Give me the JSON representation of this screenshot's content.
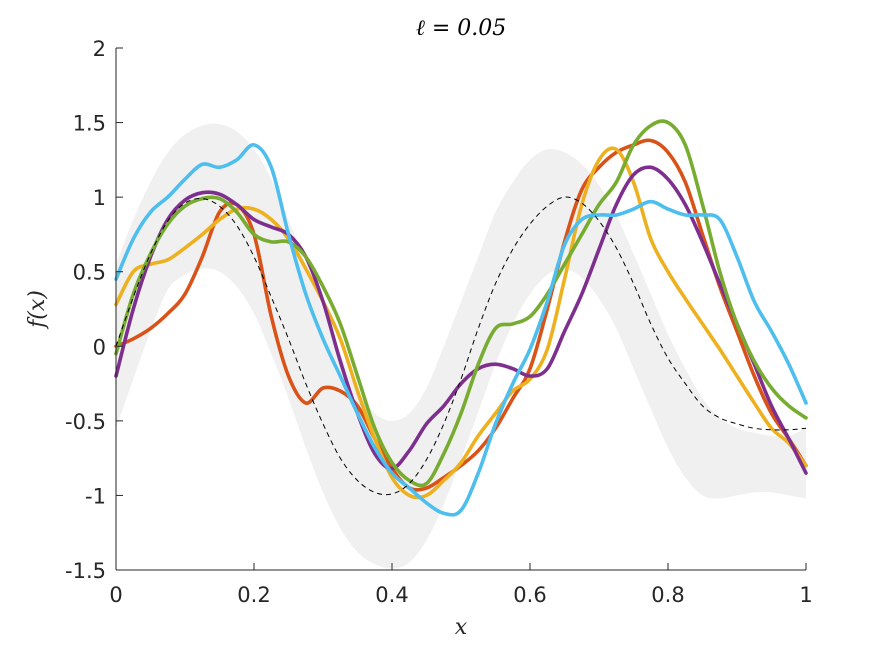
{
  "chart_data": {
    "type": "line",
    "title": "ℓ = 0.05",
    "xlabel": "x",
    "ylabel": "f(x)",
    "xlim": [
      0,
      1
    ],
    "ylim": [
      -1.5,
      2
    ],
    "xticks": [
      "0",
      "0.2",
      "0.4",
      "0.6",
      "0.8",
      "1"
    ],
    "yticks": [
      "-1.5",
      "-1",
      "-0.5",
      "0",
      "0.5",
      "1",
      "1.5",
      "2"
    ],
    "grid": false,
    "legend": "none",
    "x": [
      0,
      0.025,
      0.05,
      0.075,
      0.1,
      0.125,
      0.15,
      0.175,
      0.2,
      0.225,
      0.25,
      0.275,
      0.3,
      0.325,
      0.35,
      0.375,
      0.4,
      0.425,
      0.45,
      0.475,
      0.5,
      0.525,
      0.55,
      0.575,
      0.6,
      0.625,
      0.65,
      0.675,
      0.7,
      0.725,
      0.75,
      0.775,
      0.8,
      0.825,
      0.85,
      0.875,
      0.9,
      0.925,
      0.95,
      0.975,
      1.0
    ],
    "mean": {
      "style": "dashed",
      "color": "#000000",
      "values": [
        0,
        0.33,
        0.62,
        0.84,
        0.96,
        0.99,
        0.94,
        0.81,
        0.6,
        0.33,
        0.05,
        -0.25,
        -0.52,
        -0.75,
        -0.9,
        -0.98,
        -0.99,
        -0.92,
        -0.76,
        -0.52,
        -0.22,
        0.12,
        0.42,
        0.65,
        0.82,
        0.94,
        1.0,
        0.96,
        0.84,
        0.66,
        0.42,
        0.15,
        -0.08,
        -0.25,
        -0.4,
        -0.48,
        -0.52,
        -0.55,
        -0.56,
        -0.56,
        -0.55
      ]
    },
    "confidence_band": {
      "color": "#f0f0f0",
      "upper": [
        0.55,
        0.85,
        1.1,
        1.3,
        1.42,
        1.48,
        1.49,
        1.44,
        1.32,
        1.12,
        0.85,
        0.55,
        0.25,
        -0.05,
        -0.3,
        -0.45,
        -0.5,
        -0.45,
        -0.28,
        0.0,
        0.3,
        0.6,
        0.9,
        1.1,
        1.25,
        1.32,
        1.3,
        1.22,
        1.08,
        0.88,
        0.62,
        0.35,
        0.08,
        -0.15,
        -0.35,
        -0.48,
        -0.55,
        -0.58,
        -0.6,
        -0.6,
        -0.55
      ],
      "lower": [
        -0.55,
        -0.22,
        0.1,
        0.38,
        0.48,
        0.52,
        0.5,
        0.4,
        0.22,
        -0.05,
        -0.35,
        -0.68,
        -0.98,
        -1.22,
        -1.38,
        -1.46,
        -1.49,
        -1.45,
        -1.3,
        -1.06,
        -0.76,
        -0.44,
        -0.12,
        0.15,
        0.35,
        0.48,
        0.52,
        0.46,
        0.32,
        0.12,
        -0.15,
        -0.42,
        -0.68,
        -0.88,
        -1.0,
        -1.02,
        -1.0,
        -0.98,
        -0.98,
        -1.0,
        -1.02
      ]
    },
    "series": [
      {
        "color": "#d95319",
        "values": [
          0.0,
          0.05,
          0.12,
          0.22,
          0.35,
          0.6,
          0.9,
          0.95,
          0.75,
          0.2,
          -0.2,
          -0.38,
          -0.28,
          -0.3,
          -0.4,
          -0.62,
          -0.82,
          -0.95,
          -0.95,
          -0.88,
          -0.8,
          -0.7,
          -0.55,
          -0.35,
          -0.15,
          0.25,
          0.7,
          1.05,
          1.2,
          1.3,
          1.35,
          1.38,
          1.3,
          1.1,
          0.75,
          0.4,
          0.1,
          -0.2,
          -0.45,
          -0.62,
          -0.8
        ]
      },
      {
        "color": "#edb120",
        "values": [
          0.28,
          0.5,
          0.55,
          0.58,
          0.66,
          0.75,
          0.85,
          0.92,
          0.92,
          0.85,
          0.72,
          0.52,
          0.3,
          0.05,
          -0.3,
          -0.62,
          -0.88,
          -1.0,
          -1.0,
          -0.9,
          -0.78,
          -0.6,
          -0.45,
          -0.3,
          -0.22,
          -0.02,
          0.45,
          0.95,
          1.25,
          1.32,
          1.1,
          0.72,
          0.5,
          0.32,
          0.15,
          -0.02,
          -0.2,
          -0.38,
          -0.55,
          -0.65,
          -0.8
        ]
      },
      {
        "color": "#7e2f8e",
        "values": [
          -0.2,
          0.25,
          0.6,
          0.85,
          0.98,
          1.03,
          1.02,
          0.95,
          0.85,
          0.8,
          0.75,
          0.6,
          0.3,
          -0.1,
          -0.45,
          -0.72,
          -0.82,
          -0.7,
          -0.52,
          -0.4,
          -0.25,
          -0.15,
          -0.12,
          -0.15,
          -0.2,
          -0.15,
          0.1,
          0.35,
          0.65,
          0.95,
          1.15,
          1.2,
          1.12,
          0.95,
          0.7,
          0.42,
          0.15,
          -0.12,
          -0.4,
          -0.62,
          -0.85
        ]
      },
      {
        "color": "#77ac30",
        "values": [
          -0.05,
          0.35,
          0.62,
          0.82,
          0.94,
          0.99,
          0.99,
          0.9,
          0.75,
          0.7,
          0.7,
          0.6,
          0.4,
          0.15,
          -0.2,
          -0.55,
          -0.78,
          -0.9,
          -0.92,
          -0.72,
          -0.45,
          -0.12,
          0.12,
          0.15,
          0.2,
          0.35,
          0.55,
          0.75,
          0.95,
          1.1,
          1.35,
          1.48,
          1.5,
          1.35,
          0.95,
          0.5,
          0.15,
          -0.1,
          -0.28,
          -0.4,
          -0.48
        ]
      },
      {
        "color": "#4dbeee",
        "values": [
          0.45,
          0.72,
          0.9,
          1.0,
          1.12,
          1.22,
          1.2,
          1.25,
          1.35,
          1.2,
          0.75,
          0.35,
          0.05,
          -0.2,
          -0.45,
          -0.68,
          -0.85,
          -0.95,
          -1.05,
          -1.12,
          -1.1,
          -0.85,
          -0.52,
          -0.25,
          -0.02,
          0.3,
          0.68,
          0.85,
          0.88,
          0.88,
          0.92,
          0.97,
          0.92,
          0.88,
          0.88,
          0.85,
          0.6,
          0.3,
          0.1,
          -0.12,
          -0.38
        ]
      }
    ]
  }
}
